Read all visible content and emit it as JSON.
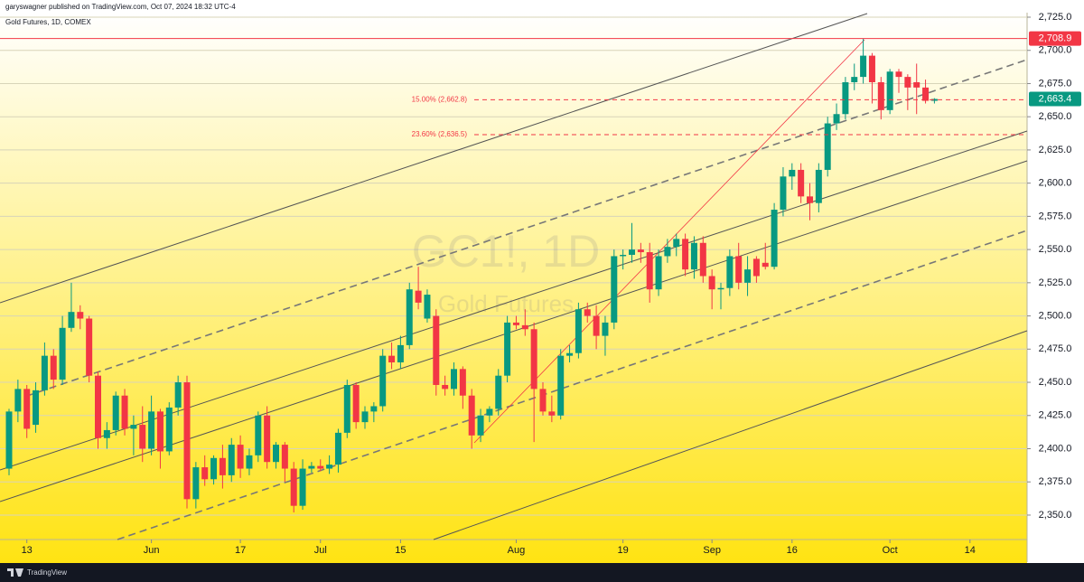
{
  "header": {
    "publisher": "garyswagner published on TradingView.com, Oct 07, 2024 18:32 UTC-4",
    "symbol": "Gold Futures, 1D, COMEX"
  },
  "footer": {
    "brand": "TradingView"
  },
  "chart_data": {
    "type": "candlestick",
    "watermark": "GC1!, 1D",
    "watermark_sub": "Gold Futures",
    "categories": [
      null,
      null,
      "13",
      null,
      null,
      null,
      null,
      null,
      null,
      null,
      null,
      null,
      null,
      null,
      null,
      null,
      "Jun",
      null,
      null,
      null,
      null,
      null,
      null,
      null,
      null,
      null,
      "17",
      null,
      null,
      null,
      null,
      null,
      null,
      null,
      null,
      "Jul",
      null,
      null,
      null,
      null,
      null,
      null,
      null,
      null,
      "15",
      null,
      null,
      null,
      null,
      null,
      null,
      null,
      null,
      null,
      null,
      null,
      null,
      "Aug",
      null,
      null,
      null,
      null,
      null,
      null,
      null,
      null,
      null,
      null,
      null,
      "19",
      null,
      null,
      null,
      null,
      null,
      null,
      null,
      null,
      null,
      "Sep",
      null,
      null,
      null,
      null,
      null,
      null,
      null,
      null,
      "16",
      null,
      null,
      null,
      null,
      null,
      null,
      null,
      null,
      null,
      null,
      "Oct",
      null,
      null,
      null,
      null,
      null,
      null,
      null,
      null,
      "14",
      null,
      null,
      null,
      null,
      null,
      null
    ],
    "open": [
      2385,
      2428,
      2445,
      2418,
      2444,
      2470,
      2452,
      2491,
      2503,
      2498,
      2455,
      2408,
      2414,
      2440,
      2415,
      2418,
      2400,
      2428,
      2398,
      2431,
      2450,
      2362,
      2386,
      2377,
      2393,
      2380,
      2403,
      2385,
      2395,
      2425,
      2390,
      2403,
      2385,
      2357,
      2385,
      2387,
      2385,
      2388,
      2412,
      2448,
      2420,
      2428,
      2432,
      2470,
      2465,
      2478,
      2519,
      2498,
      2500,
      2448,
      2445,
      2460,
      2440,
      2410,
      2425,
      2430,
      2455,
      2495,
      2493,
      2490,
      2445,
      2428,
      2425,
      2470,
      2472,
      2505,
      2500,
      2485,
      2495,
      2545,
      2546,
      2550,
      2548,
      2520,
      2545,
      2552,
      2558,
      2535,
      2555,
      2530,
      2520,
      2521,
      2545,
      2525,
      2543,
      2540,
      2537,
      2580,
      2605,
      2610,
      2590,
      2585,
      2610,
      2645,
      2652,
      2676,
      2680,
      2696,
      2676,
      2655,
      2684,
      2680,
      2676,
      2672,
      2662,
      null,
      null,
      null,
      null,
      null,
      null,
      null,
      null,
      null,
      null
    ],
    "high": [
      2430,
      2452,
      2448,
      2450,
      2480,
      2475,
      2500,
      2525,
      2508,
      2500,
      2458,
      2420,
      2443,
      2445,
      2425,
      2432,
      2440,
      2430,
      2435,
      2455,
      2455,
      2390,
      2395,
      2395,
      2403,
      2408,
      2410,
      2400,
      2428,
      2432,
      2405,
      2405,
      2390,
      2392,
      2390,
      2392,
      2395,
      2415,
      2452,
      2450,
      2432,
      2435,
      2475,
      2480,
      2485,
      2525,
      2537,
      2520,
      2505,
      2455,
      2465,
      2462,
      2445,
      2430,
      2432,
      2460,
      2500,
      2500,
      2505,
      2495,
      2450,
      2440,
      2475,
      2478,
      2510,
      2510,
      2508,
      2500,
      2550,
      2550,
      2570,
      2555,
      2555,
      2550,
      2558,
      2562,
      2562,
      2560,
      2560,
      2535,
      2525,
      2550,
      2555,
      2545,
      2545,
      2555,
      2585,
      2612,
      2615,
      2615,
      2600,
      2615,
      2650,
      2660,
      2680,
      2690,
      2709,
      2698,
      2680,
      2686,
      2686,
      2682,
      2690,
      2678,
      2664,
      null,
      null,
      null,
      null,
      null,
      null,
      null,
      null,
      null,
      null
    ],
    "low": [
      2380,
      2420,
      2408,
      2412,
      2440,
      2445,
      2448,
      2488,
      2490,
      2450,
      2400,
      2400,
      2410,
      2410,
      2395,
      2390,
      2395,
      2385,
      2395,
      2425,
      2355,
      2355,
      2372,
      2373,
      2370,
      2375,
      2378,
      2380,
      2390,
      2385,
      2385,
      2375,
      2352,
      2354,
      2382,
      2383,
      2381,
      2382,
      2408,
      2415,
      2415,
      2420,
      2428,
      2460,
      2460,
      2475,
      2505,
      2495,
      2440,
      2440,
      2440,
      2430,
      2400,
      2405,
      2420,
      2425,
      2450,
      2490,
      2485,
      2405,
      2425,
      2420,
      2422,
      2465,
      2468,
      2495,
      2475,
      2470,
      2490,
      2535,
      2540,
      2540,
      2510,
      2515,
      2540,
      2545,
      2530,
      2528,
      2525,
      2505,
      2505,
      2515,
      2520,
      2515,
      2525,
      2535,
      2535,
      2575,
      2595,
      2585,
      2572,
      2578,
      2605,
      2640,
      2648,
      2670,
      2675,
      2660,
      2648,
      2652,
      2668,
      2655,
      2652,
      2660,
      2660,
      null,
      null,
      null,
      null,
      null,
      null,
      null,
      null,
      null,
      null
    ],
    "close": [
      2428,
      2445,
      2415,
      2444,
      2470,
      2452,
      2491,
      2503,
      2498,
      2455,
      2408,
      2414,
      2440,
      2415,
      2418,
      2400,
      2428,
      2398,
      2431,
      2450,
      2362,
      2386,
      2377,
      2393,
      2380,
      2403,
      2385,
      2395,
      2425,
      2390,
      2403,
      2385,
      2357,
      2385,
      2387,
      2385,
      2388,
      2412,
      2448,
      2420,
      2428,
      2432,
      2470,
      2465,
      2478,
      2520,
      2510,
      2516,
      2448,
      2445,
      2460,
      2440,
      2410,
      2425,
      2430,
      2455,
      2495,
      2493,
      2490,
      2445,
      2428,
      2425,
      2470,
      2472,
      2505,
      2500,
      2485,
      2495,
      2545,
      2546,
      2550,
      2548,
      2520,
      2545,
      2552,
      2558,
      2535,
      2555,
      2530,
      2520,
      2521,
      2545,
      2525,
      2535,
      2530,
      2537,
      2580,
      2605,
      2610,
      2590,
      2585,
      2610,
      2645,
      2652,
      2676,
      2680,
      2696,
      2676,
      2655,
      2684,
      2680,
      2672,
      2672,
      2662,
      2663.4,
      null,
      null,
      null,
      null,
      null,
      null,
      null,
      null,
      null,
      null
    ],
    "up_color": "#089981",
    "down_color": "#f23645",
    "ylim": [
      2331.6,
      2728.4
    ],
    "yticks": [
      {
        "value": 2350,
        "label": "2,350.0"
      },
      {
        "value": 2375,
        "label": "2,375.0"
      },
      {
        "value": 2400,
        "label": "2,400.0"
      },
      {
        "value": 2425,
        "label": "2,425.0"
      },
      {
        "value": 2450,
        "label": "2,450.0"
      },
      {
        "value": 2475,
        "label": "2,475.0"
      },
      {
        "value": 2500,
        "label": "2,500.0"
      },
      {
        "value": 2525,
        "label": "2,525.0"
      },
      {
        "value": 2550,
        "label": "2,550.0"
      },
      {
        "value": 2575,
        "label": "2,575.0"
      },
      {
        "value": 2600,
        "label": "2,600.0"
      },
      {
        "value": 2625,
        "label": "2,625.0"
      },
      {
        "value": 2650,
        "label": "2,650.0"
      },
      {
        "value": 2675,
        "label": "2,675.0"
      },
      {
        "value": 2700,
        "label": "2,700.0"
      },
      {
        "value": 2725,
        "label": "2,725.0"
      }
    ],
    "grid": true,
    "levels": [
      {
        "value": 2708.9,
        "label": "2,708.9",
        "color": "#f23645"
      }
    ],
    "fib_levels": [
      {
        "value": 2662.8,
        "label": "15.00% (2,662.8)",
        "color": "#f23645"
      },
      {
        "value": 2636.5,
        "label": "23.60% (2,636.5)",
        "color": "#f23645"
      }
    ],
    "last_price": {
      "value": 2663.4,
      "label": "2,663.4",
      "color": "#089981"
    }
  }
}
